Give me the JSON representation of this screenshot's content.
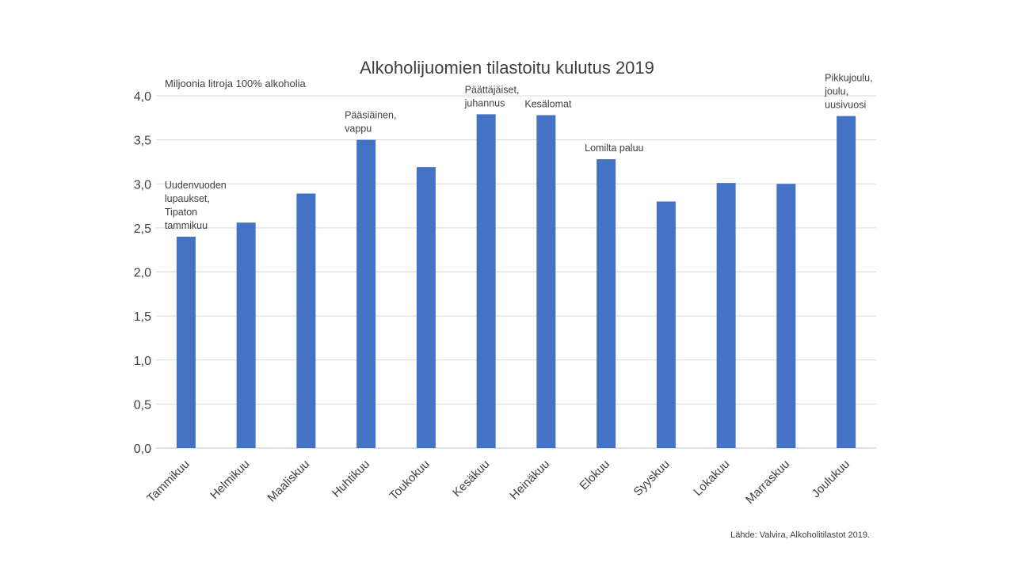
{
  "chart_data": {
    "type": "bar",
    "title": "Alkoholijuomien tilastoitu kulutus 2019",
    "ylabel": "Miljoonia litroja 100% alkoholia",
    "xlabel": "",
    "ylim": [
      0,
      4.0
    ],
    "ytick_step": 0.5,
    "ytick_labels": [
      "0,0",
      "0,5",
      "1,0",
      "1,5",
      "2,0",
      "2,5",
      "3,0",
      "3,5",
      "4,0"
    ],
    "grid": true,
    "categories": [
      "Tammikuu",
      "Helmikuu",
      "Maaliskuu",
      "Huhtikuu",
      "Toukokuu",
      "Kesäkuu",
      "Heinäkuu",
      "Elokuu",
      "Syyskuu",
      "Lokakuu",
      "Marraskuu",
      "Joulukuu"
    ],
    "values": [
      2.4,
      2.56,
      2.89,
      3.5,
      3.19,
      3.79,
      3.78,
      3.28,
      2.8,
      3.01,
      3.0,
      3.77
    ],
    "bar_color": "#4472c4",
    "annotations": [
      {
        "category": "Tammikuu",
        "lines": [
          "Uudenvuoden",
          "lupaukset,",
          "Tipaton",
          "tammikuu"
        ]
      },
      {
        "category": "Huhtikuu",
        "lines": [
          "Pääsiäinen,",
          "vappu"
        ]
      },
      {
        "category": "Kesäkuu",
        "lines": [
          "Päättäjäiset,",
          "juhannus"
        ]
      },
      {
        "category": "Heinäkuu",
        "lines": [
          "Kesälomat"
        ]
      },
      {
        "category": "Elokuu",
        "lines": [
          "Lomilta paluu"
        ]
      },
      {
        "category": "Joulukuu",
        "lines": [
          "Pikkujoulu,",
          "joulu,",
          "uusivuosi"
        ]
      }
    ],
    "source": "Lähde: Valvira, Alkoholitilastot 2019."
  }
}
